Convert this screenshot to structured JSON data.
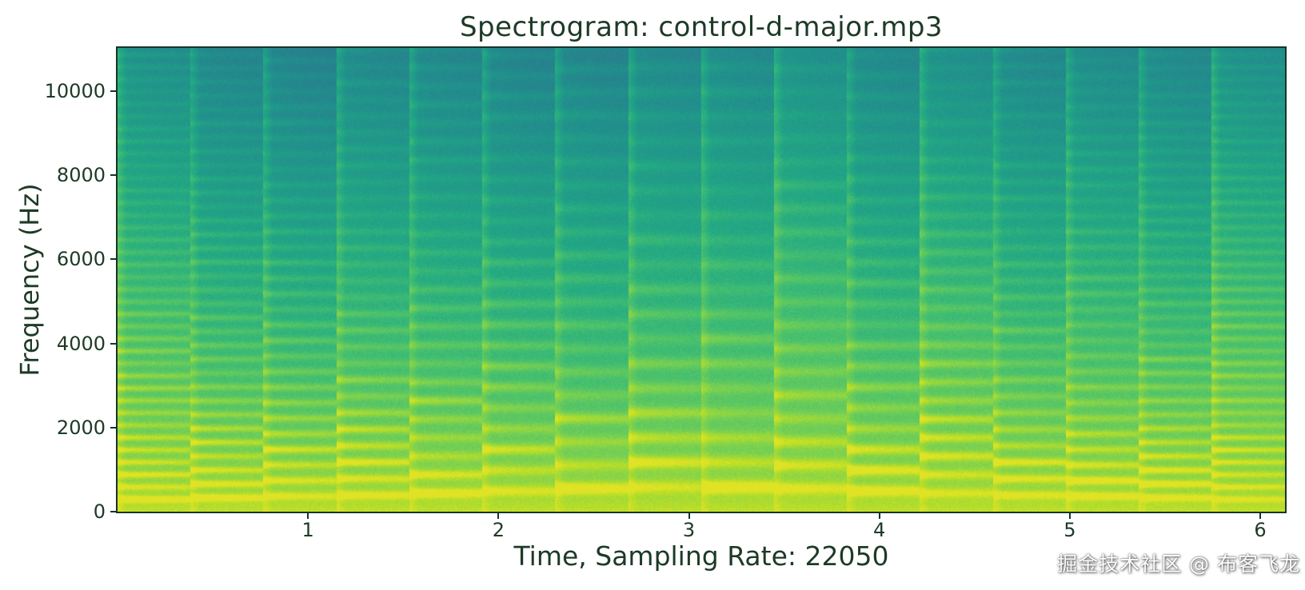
{
  "page": {
    "background": "#ffffff"
  },
  "watermark": "掘金技术社区 @ 布客飞龙",
  "chart_data": {
    "type": "heatmap",
    "subtype": "spectrogram",
    "title": "Spectrogram: control-d-major.mp3",
    "xlabel": "Time, Sampling Rate: 22050",
    "ylabel": "Frequency (Hz)",
    "sampling_rate_hz": 22050,
    "x_unit": "seconds",
    "x_range": [
      0,
      6.13
    ],
    "y_range": [
      0,
      11025
    ],
    "x_ticks": [
      1,
      2,
      3,
      4,
      5,
      6
    ],
    "y_ticks": [
      0,
      2000,
      4000,
      6000,
      8000,
      10000
    ],
    "grid": false,
    "legend": false,
    "colormap": "viridis",
    "colormap_stops": [
      [
        0.0,
        "#440154"
      ],
      [
        0.1,
        "#482475"
      ],
      [
        0.2,
        "#414487"
      ],
      [
        0.3,
        "#355f8d"
      ],
      [
        0.4,
        "#2a788e"
      ],
      [
        0.5,
        "#21918c"
      ],
      [
        0.6,
        "#22a884"
      ],
      [
        0.7,
        "#44bf70"
      ],
      [
        0.8,
        "#7ad151"
      ],
      [
        0.9,
        "#bddf26"
      ],
      [
        1.0,
        "#fde725"
      ]
    ],
    "text_color": "#1d3a26",
    "spine_color": "#17342a",
    "notes_estimated": {
      "count": 16,
      "note_duration_s": 0.383,
      "pattern": "D major scale, ascending then descending (visible as 16 vertical note columns with harmonic stripes)",
      "fundamentals_hz": [
        293.7,
        329.6,
        370.0,
        392.0,
        440.0,
        493.9,
        554.4,
        587.3,
        587.3,
        554.4,
        493.9,
        440.0,
        392.0,
        370.0,
        329.6,
        293.7
      ]
    },
    "render": {
      "value_map_offset": 0.37,
      "value_map_scale": 0.585,
      "base_bottom": 0.93,
      "base_top": 0.2,
      "base_exponent": 0.62,
      "harmonic_amp": 0.3,
      "harmonic_amp_floor": 0.05,
      "harmonic_freq_decay": 2.6,
      "harmonic_time_decay": 4.0,
      "harmonic_sustain": 0.55,
      "sigma_min_hz": 40,
      "sigma_ratio": 0.17,
      "attack_duration_s": 0.05,
      "attack_amp": 0.17,
      "sustain_darkening": 0.07,
      "column_variation": 0.11,
      "noise_amp": 0.1
    }
  }
}
